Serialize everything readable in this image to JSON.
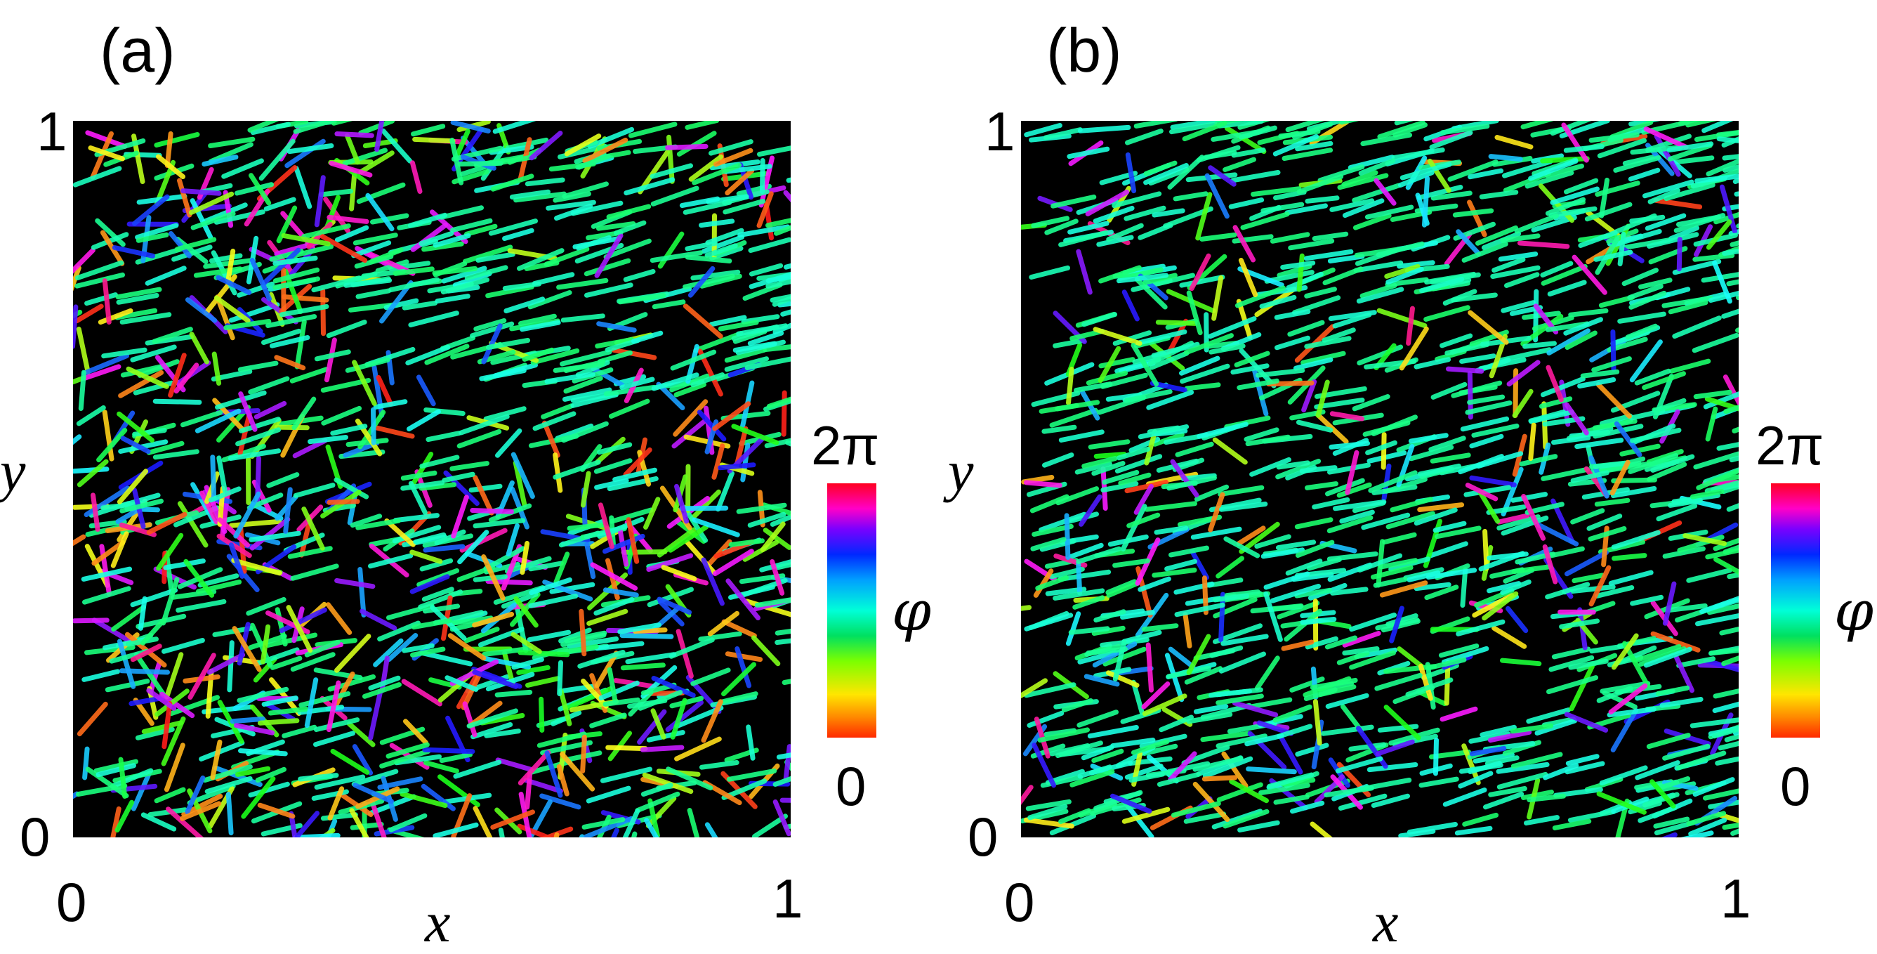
{
  "panels": [
    {
      "tag": "(a)",
      "x_label": "x",
      "y_label": "y",
      "x_ticks": [
        "0",
        "1"
      ],
      "y_ticks": [
        "0",
        "1"
      ],
      "colorbar": {
        "top_label": "2π",
        "bottom_label": "0",
        "variable": "φ"
      },
      "pattern": "cyan-cluster-upper-middle"
    },
    {
      "tag": "(b)",
      "x_label": "x",
      "y_label": "y",
      "x_ticks": [
        "0",
        "1"
      ],
      "y_ticks": [
        "0",
        "1"
      ],
      "colorbar": {
        "top_label": "2π",
        "bottom_label": "0",
        "variable": "φ"
      },
      "pattern": "mostly-cyan-aligned"
    }
  ],
  "colors": {
    "background": "#000000",
    "colorbar_stops": [
      "#ff2a00",
      "#ff8800",
      "#ffe600",
      "#7cff00",
      "#00e060",
      "#00ffd8",
      "#00a0ff",
      "#0028ff",
      "#7a00ff",
      "#ff00c8",
      "#ff0020"
    ]
  }
}
